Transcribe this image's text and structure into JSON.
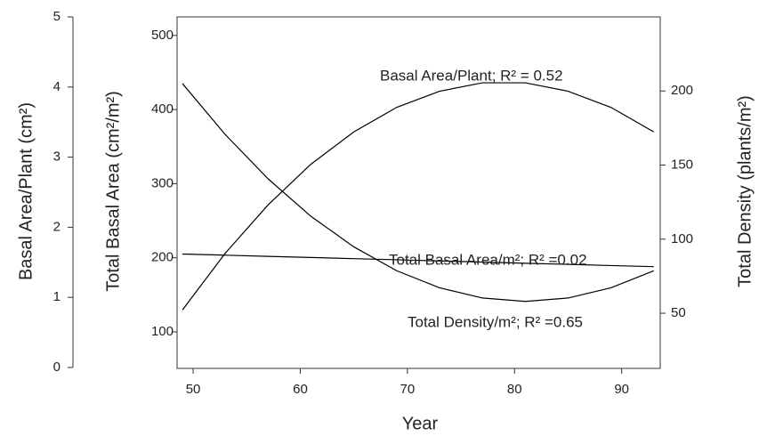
{
  "chart_data": {
    "type": "line",
    "x_label": "Year",
    "y_label": "Basal Area/Plant (cm²)",
    "y2_label": "Total Basal Area (cm²/m²)",
    "y3_label": "Total Density (plants/m²)",
    "x": [
      49,
      53,
      57,
      61,
      65,
      69,
      73,
      77,
      81,
      85,
      89,
      93
    ],
    "series": [
      {
        "axis": "y",
        "color": "#000000",
        "values": [
          0.82,
          1.63,
          2.32,
          2.9,
          3.36,
          3.71,
          3.94,
          4.06,
          4.06,
          3.94,
          3.71,
          3.36
        ]
      },
      {
        "axis": "y2",
        "color": "#000000",
        "values": [
          205,
          203.5,
          201.9,
          200.4,
          198.8,
          197.3,
          195.7,
          194.2,
          192.6,
          191.1,
          189.5,
          188
        ]
      },
      {
        "axis": "y3",
        "color": "#000000",
        "values": [
          205,
          170.6,
          140.7,
          115.4,
          94.8,
          78.7,
          67.2,
          60.3,
          58,
          60.3,
          67.2,
          78.7
        ]
      }
    ],
    "annotations": [
      "Basal Area/Plant; R² = 0.52",
      "Total Basal Area/m²; R² =0.02",
      "Total Density/m²; R² =0.65"
    ],
    "xlim": [
      48.5,
      93.6
    ],
    "xticks": [
      50,
      60,
      70,
      80,
      90
    ],
    "ylim": [
      0,
      5
    ],
    "yticks": [
      0,
      1,
      2,
      3,
      4,
      5
    ],
    "y2lim": [
      50.75,
      525
    ],
    "y2ticks": [
      100,
      200,
      300,
      400,
      500
    ],
    "y3lim": [
      12.8,
      250
    ],
    "y3ticks": [
      50,
      100,
      150,
      200
    ]
  }
}
